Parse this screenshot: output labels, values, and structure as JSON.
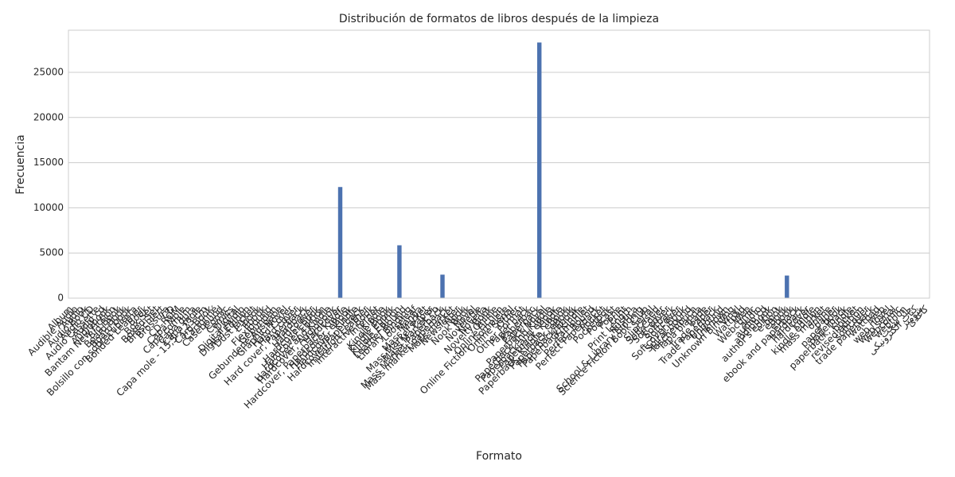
{
  "chart_data": {
    "type": "bar",
    "title": "Distribución de formatos de libros después de la limpieza",
    "x_label": "Formato",
    "y_label": "Frecuencia",
    "color": "#4c72b0",
    "grid": true,
    "ylim": [
      0,
      29660
    ],
    "yticks": [
      0,
      5000,
      10000,
      15000,
      20000,
      25000
    ],
    "categories": [
      "Album",
      "Audible Audio",
      "Audio",
      "Audio Book",
      "Audio CD",
      "Audio Cassette",
      "Audio cd",
      "Audiobook",
      "Bantam New Fiction",
      "Big Book",
      "Board Book",
      "Board book",
      "Bolsillo con sobrecubierta",
      "Bonded Leather",
      "Book",
      "Box Set",
      "Boxed Set",
      "Broschiert",
      "Brossura",
      "CD",
      "CD-ROM",
      "Capa Mole",
      "Capa comum",
      "Capa dura",
      "Capa mole",
      "Capa mole - 15,5 x 23 cm",
      "Card Book",
      "Cartonné",
      "Casebound",
      "Comic",
      "Comics",
      "Digital",
      "Digital Audio",
      "Digital Edition",
      "Dust Jacket",
      "E-book",
      "Ebook",
      "Flexibound",
      "Gebunden",
      "Gebundene Ausgabe",
      "Graphic Novel",
      "Hard Cover",
      "Hard cover",
      "Hard cover, Paperback",
      "Hardback",
      "Hardcouver",
      "Hardcover Book",
      "Hardcover Edition",
      "Hardcover and Kindle",
      "Hardcover, Audiobook",
      "Hardcover",
      "Hardcover, Paperback, Kindle",
      "Hardcover, eBook",
      "Hardcover, Kindle",
      "Hardcover/Paperback",
      "Imitation Leather",
      "Interactive Book",
      "Internet",
      "Kindle",
      "Kindle Book",
      "Kindle Ebook",
      "Kindle Edition",
      "Leather Bound",
      "Library Binding",
      "Looseleaf",
      "Manga",
      "Mass Market",
      "Mass Market Paper",
      "Mass Market Pb",
      "Mass Market Paperback",
      "Mass market paperback",
      "Mass-market",
      "Newsletter",
      "Nook",
      "Nook Book",
      "Novel",
      "Novelette",
      "Novella",
      "Novelty Book",
      "Online",
      "Online Fiction",
      "Online Fiction - Complete",
      "Online Serial",
      "Other",
      "Other Format",
      "Paper back",
      "Paperbac",
      "Paperback",
      "Paperback Novel",
      "Paperback and Kindle",
      "Paperback and eBook",
      "Paperback, Kindle",
      "Paperback, Kindle, eBook",
      "Paperback, eBook",
      "Paperback/Ebook",
      "Paperback/Kindle",
      "Pamphlet",
      "Perfect Bound",
      "Perfect Paperback",
      "Pocket",
      "Pocketbok",
      "Podcast",
      "Poche",
      "Print",
      "Print Length",
      "Rústica",
      "School & Library Binding",
      "Science Fiction Book Club",
      "Serial",
      "Slipcased",
      "Soft Cover",
      "Soft cover",
      "Softback",
      "Softcover",
      "Softcover Book",
      "Spiral-bound",
      "Taschenbuch",
      "Tapa blanda",
      "Trade",
      "Trade Paper",
      "Trade Paperback",
      "Unbound",
      "Unknown",
      "Unknown Binding",
      "Vinyl",
      "Wattpad",
      "Web",
      "Webcomic",
      "audio",
      "audio cd",
      "audiobook",
      "author's edition",
      "e-book",
      "eBook",
      "ebook",
      "ebook and paperback",
      "hardback",
      "hardcover",
      "kindle",
      "kindle edition",
      "mass market",
      "online",
      "paper",
      "paper book",
      "paperback",
      "paperback, kindle",
      "pocket",
      "revised edition",
      "softcover",
      "trade paperback",
      "wattpad",
      "web",
      "web novel",
      "web serial",
      "webcomic",
      "webtoon",
      "جلد سخت",
      "کتاب الکترونیکی",
      "شومیز",
      "کاغذی"
    ],
    "values": [
      1,
      1,
      1,
      1,
      1,
      1,
      1,
      1,
      1,
      1,
      1,
      1,
      1,
      1,
      1,
      1,
      1,
      1,
      1,
      1,
      1,
      1,
      1,
      1,
      1,
      1,
      1,
      1,
      1,
      1,
      1,
      1,
      1,
      1,
      1,
      1,
      1,
      1,
      1,
      1,
      1,
      1,
      1,
      1,
      1,
      1,
      1,
      1,
      1,
      1,
      12300,
      1,
      1,
      1,
      1,
      1,
      1,
      1,
      1,
      1,
      1,
      5850,
      1,
      1,
      1,
      1,
      1,
      1,
      1,
      2600,
      1,
      1,
      1,
      1,
      1,
      1,
      1,
      1,
      1,
      1,
      1,
      1,
      1,
      1,
      1,
      1,
      1,
      28300,
      1,
      1,
      1,
      1,
      1,
      1,
      1,
      1,
      1,
      1,
      1,
      1,
      1,
      1,
      1,
      1,
      1,
      1,
      1,
      1,
      1,
      1,
      1,
      1,
      1,
      1,
      1,
      1,
      1,
      1,
      1,
      1,
      1,
      1,
      1,
      1,
      1,
      1,
      1,
      1,
      1,
      1,
      1,
      1,
      1,
      2500,
      1,
      1,
      1,
      1,
      1,
      1,
      1,
      1,
      1,
      1,
      1,
      1,
      1,
      1,
      1,
      1,
      1,
      1,
      1,
      1,
      1,
      1,
      1,
      1,
      1,
      1
    ]
  }
}
